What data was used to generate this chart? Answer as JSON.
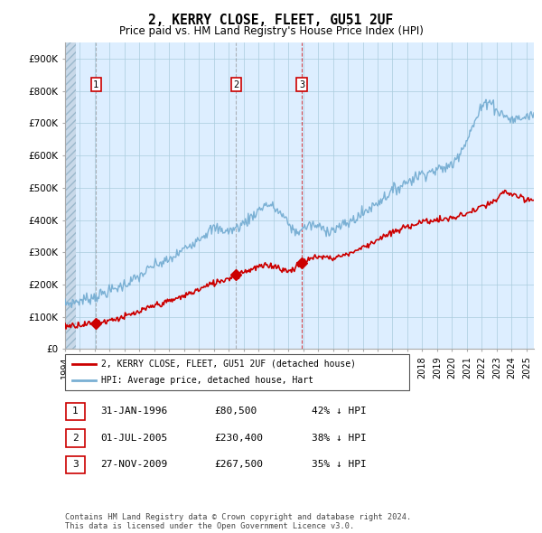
{
  "title": "2, KERRY CLOSE, FLEET, GU51 2UF",
  "subtitle": "Price paid vs. HM Land Registry's House Price Index (HPI)",
  "xlim_start": 1994.0,
  "xlim_end": 2025.5,
  "ylim": [
    0,
    950000
  ],
  "yticks": [
    0,
    100000,
    200000,
    300000,
    400000,
    500000,
    600000,
    700000,
    800000,
    900000
  ],
  "ytick_labels": [
    "£0",
    "£100K",
    "£200K",
    "£300K",
    "£400K",
    "£500K",
    "£600K",
    "£700K",
    "£800K",
    "£900K"
  ],
  "xticks": [
    1994,
    1995,
    1996,
    1997,
    1998,
    1999,
    2000,
    2001,
    2002,
    2003,
    2004,
    2005,
    2006,
    2007,
    2008,
    2009,
    2010,
    2011,
    2012,
    2013,
    2014,
    2015,
    2016,
    2017,
    2018,
    2019,
    2020,
    2021,
    2022,
    2023,
    2024,
    2025
  ],
  "price_paid_dates": [
    1996.08,
    2005.5,
    2009.91
  ],
  "price_paid_values": [
    80500,
    230400,
    267500
  ],
  "transaction_labels": [
    "1",
    "2",
    "3"
  ],
  "hpi_color": "#7ab0d4",
  "price_color": "#cc0000",
  "chart_bg": "#ddeeff",
  "grid_color": "#aaccdd",
  "legend_line1": "2, KERRY CLOSE, FLEET, GU51 2UF (detached house)",
  "legend_line2": "HPI: Average price, detached house, Hart",
  "table_rows": [
    {
      "num": "1",
      "date": "31-JAN-1996",
      "price": "£80,500",
      "hpi": "42% ↓ HPI"
    },
    {
      "num": "2",
      "date": "01-JUL-2005",
      "price": "£230,400",
      "hpi": "38% ↓ HPI"
    },
    {
      "num": "3",
      "date": "27-NOV-2009",
      "price": "£267,500",
      "hpi": "35% ↓ HPI"
    }
  ],
  "footer": "Contains HM Land Registry data © Crown copyright and database right 2024.\nThis data is licensed under the Open Government Licence v3.0."
}
